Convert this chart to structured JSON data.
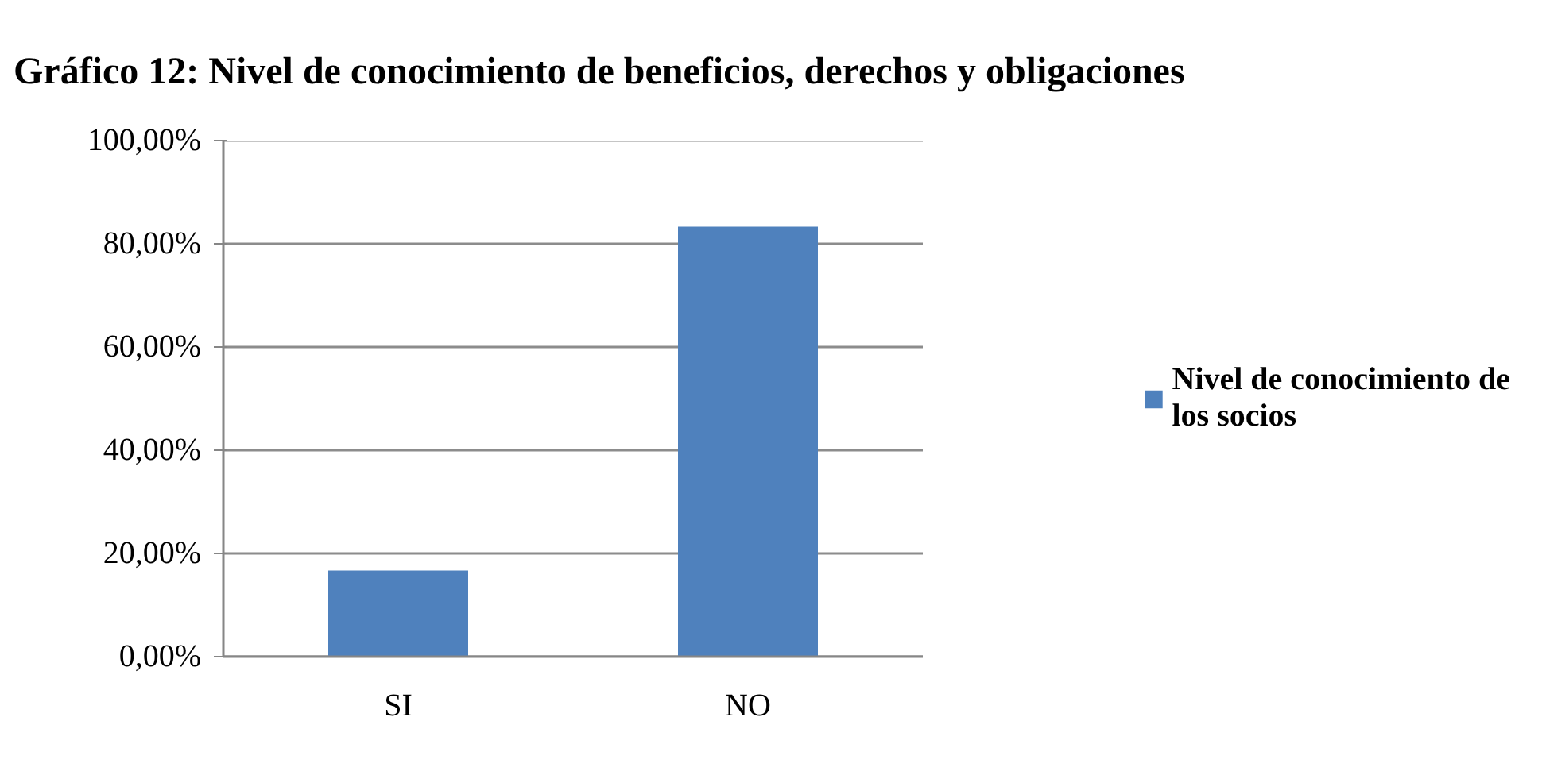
{
  "chart_data": {
    "type": "bar",
    "title": "Gráfico 12: Nivel de conocimiento de beneficios, derechos y obligaciones",
    "categories": [
      "SI",
      "NO"
    ],
    "series": [
      {
        "name": "Nivel de conocimiento de los socios",
        "color": "#4f81bd",
        "values": [
          16.7,
          83.3
        ]
      }
    ],
    "ylim": [
      0,
      100
    ],
    "yticks": [
      {
        "value": 0,
        "label": "0,00%"
      },
      {
        "value": 20,
        "label": "20,00%"
      },
      {
        "value": 40,
        "label": "40,00%"
      },
      {
        "value": 60,
        "label": "60,00%"
      },
      {
        "value": 80,
        "label": "80,00%"
      },
      {
        "value": 100,
        "label": "100,00%"
      }
    ],
    "grid": "y",
    "legend": "right"
  }
}
